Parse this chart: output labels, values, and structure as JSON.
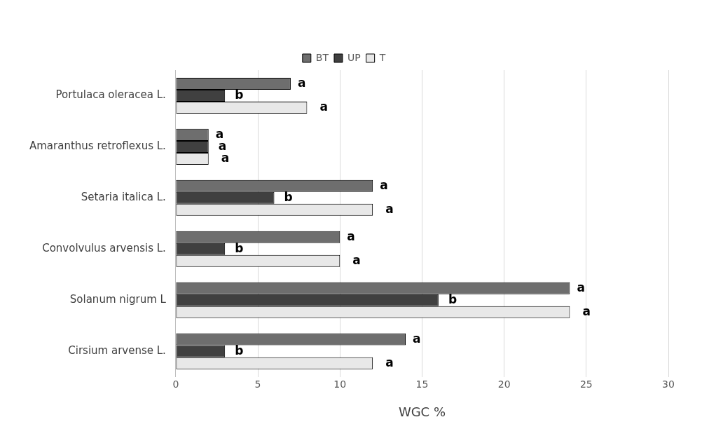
{
  "chart_data": {
    "type": "bar",
    "orientation": "horizontal",
    "xlabel": "WGC %",
    "categories": [
      "Portulaca oleracea L.",
      "Amaranthus retroflexus L.",
      "Setaria italica L.",
      "Convolvulus arvensis L.",
      "Solanum nigrum L",
      "Cirsium arvense L."
    ],
    "series": [
      {
        "name": "BT",
        "color": "#6e6e6e",
        "values": [
          7,
          2,
          12,
          10,
          24,
          14
        ],
        "value_labels": [
          "a",
          "a",
          "a",
          "a",
          "a",
          "a"
        ]
      },
      {
        "name": "UP",
        "color": "#404040",
        "values": [
          3,
          2,
          6,
          3,
          16,
          3
        ],
        "value_labels": [
          "b",
          "a",
          "b",
          "b",
          "b",
          "b"
        ]
      },
      {
        "name": "T",
        "color": "#e8e8e8",
        "values": [
          8,
          2,
          12,
          10,
          24,
          12
        ],
        "value_labels": [
          "a",
          "a",
          "a",
          "a",
          "a",
          "a"
        ]
      }
    ],
    "xlim": [
      0,
      30
    ],
    "xticks": [
      0,
      5,
      10,
      15,
      20,
      25,
      30
    ],
    "grid": "x",
    "legend": "top"
  }
}
